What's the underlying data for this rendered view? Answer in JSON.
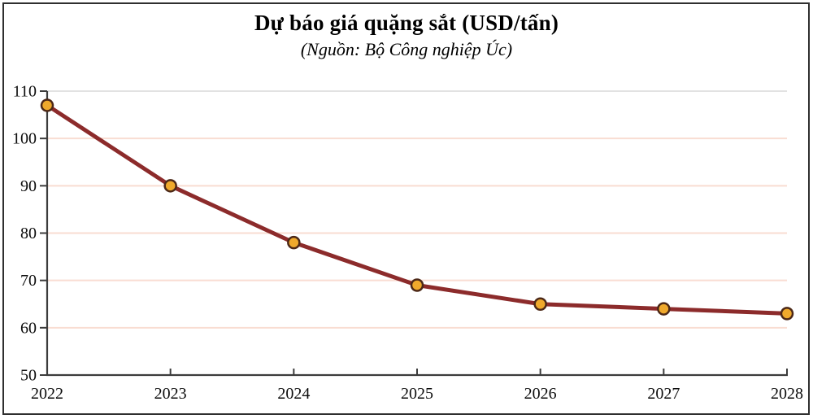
{
  "header": {
    "title": "Dự báo giá quặng sắt (USD/tấn)",
    "subtitle": "(Nguồn: Bộ Công nghiệp Úc)"
  },
  "chart_data": {
    "type": "line",
    "title": "Dự báo giá quặng sắt (USD/tấn)",
    "subtitle": "(Nguồn: Bộ Công nghiệp Úc)",
    "categories": [
      "2022",
      "2023",
      "2024",
      "2025",
      "2026",
      "2027",
      "2028"
    ],
    "values": [
      107,
      90,
      78,
      69,
      65,
      64,
      63
    ],
    "xlabel": "",
    "ylabel": "",
    "ylim": [
      50,
      110
    ],
    "yticks": [
      50,
      60,
      70,
      80,
      90,
      100,
      110
    ],
    "grid": "horizontal",
    "legend_position": "none",
    "colors": {
      "line": "#8c2b2b",
      "marker_fill": "#efa92c",
      "marker_stroke": "#4c2817",
      "grid": "#f9ddd2",
      "top_border": "#d9d9d9",
      "axis": "#3c3c3c",
      "frame": "#2f2f2f",
      "background": "#ffffff",
      "text": "#0c0c0c"
    }
  }
}
